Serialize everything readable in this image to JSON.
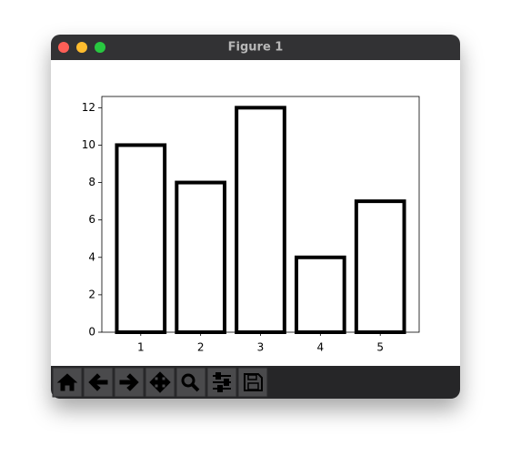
{
  "window": {
    "title": "Figure 1"
  },
  "chart_data": {
    "type": "bar",
    "x": [
      1,
      2,
      3,
      4,
      5
    ],
    "values": [
      10,
      8,
      12,
      4,
      7
    ],
    "color": "#ffffff",
    "edgecolor": "#000000",
    "xlim": [
      0.35,
      5.65
    ],
    "xticks": [
      1,
      2,
      3,
      4,
      5
    ],
    "ylim": [
      0,
      12.6
    ],
    "yticks": [
      0,
      2,
      4,
      6,
      8,
      10,
      12
    ]
  }
}
